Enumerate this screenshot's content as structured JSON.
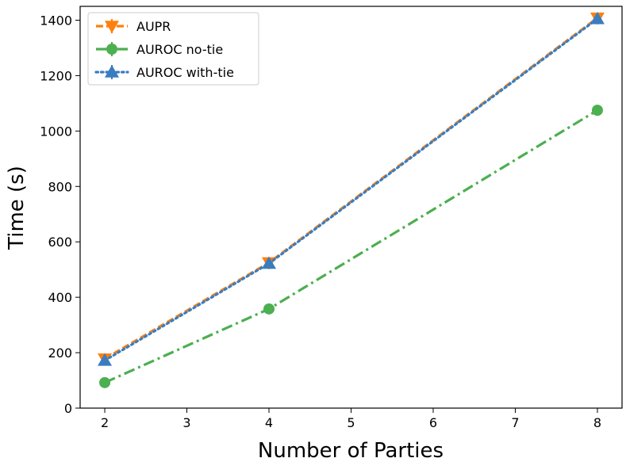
{
  "chart_data": {
    "type": "line",
    "title": "",
    "xlabel": "Number of Parties",
    "ylabel": "Time (s)",
    "xlim": [
      1.7,
      8.3
    ],
    "ylim": [
      0,
      1450
    ],
    "x_ticks": [
      2,
      3,
      4,
      5,
      6,
      7,
      8
    ],
    "y_ticks": [
      0,
      200,
      400,
      600,
      800,
      1000,
      1200,
      1400
    ],
    "grid": false,
    "legend_position": "top-left",
    "series": [
      {
        "name": "AUPR",
        "x": [
          2,
          4,
          8
        ],
        "y": [
          178,
          525,
          1408
        ],
        "color": "#ff7f0e",
        "line_style": "dashed",
        "marker": "triangle-down"
      },
      {
        "name": "AUROC no-tie",
        "x": [
          2,
          4,
          8
        ],
        "y": [
          92,
          358,
          1075
        ],
        "color": "#4caf50",
        "line_style": "dash-dot",
        "marker": "circle"
      },
      {
        "name": "AUROC with-tie",
        "x": [
          2,
          4,
          8
        ],
        "y": [
          172,
          522,
          1405
        ],
        "color": "#3a7dbf",
        "line_style": "dotted",
        "marker": "triangle-up"
      }
    ]
  }
}
